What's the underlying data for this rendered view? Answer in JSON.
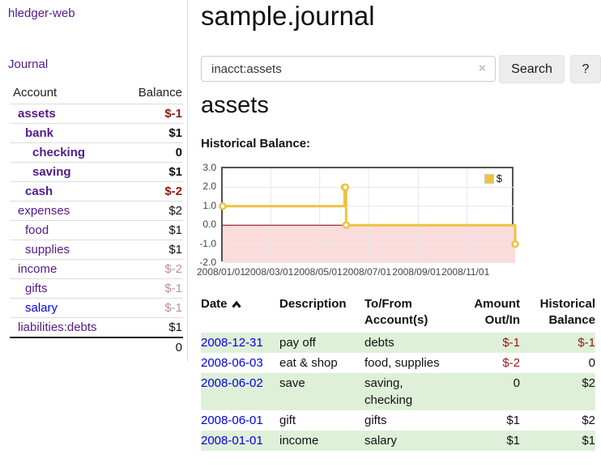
{
  "sidebar": {
    "brand": "hledger-web",
    "nav": [
      {
        "label": "Journal"
      }
    ],
    "accounts_table": {
      "headers": {
        "account": "Account",
        "balance": "Balance"
      },
      "rows": [
        {
          "name": "assets",
          "depth": 0,
          "balance": "$-1",
          "bold": true,
          "balance_style": "neg",
          "link_style": "purple"
        },
        {
          "name": "bank",
          "depth": 1,
          "balance": "$1",
          "bold": true,
          "balance_style": "normal",
          "link_style": "purple"
        },
        {
          "name": "checking",
          "depth": 2,
          "balance": "0",
          "bold": true,
          "balance_style": "normal",
          "link_style": "purple"
        },
        {
          "name": "saving",
          "depth": 2,
          "balance": "$1",
          "bold": true,
          "balance_style": "normal",
          "link_style": "purple"
        },
        {
          "name": "cash",
          "depth": 1,
          "balance": "$-2",
          "bold": true,
          "balance_style": "neg",
          "link_style": "purple"
        },
        {
          "name": "expenses",
          "depth": 0,
          "balance": "$2",
          "bold": false,
          "balance_style": "normal",
          "link_style": "purple"
        },
        {
          "name": "food",
          "depth": 1,
          "balance": "$1",
          "bold": false,
          "balance_style": "normal",
          "link_style": "purple"
        },
        {
          "name": "supplies",
          "depth": 1,
          "balance": "$1",
          "bold": false,
          "balance_style": "normal",
          "link_style": "purple"
        },
        {
          "name": "income",
          "depth": 0,
          "balance": "$-2",
          "bold": false,
          "balance_style": "neg-dim",
          "link_style": "purple"
        },
        {
          "name": "gifts",
          "depth": 1,
          "balance": "$-1",
          "bold": false,
          "balance_style": "neg-dim",
          "link_style": "purple"
        },
        {
          "name": "salary",
          "depth": 1,
          "balance": "$-1",
          "bold": false,
          "balance_style": "neg-dim",
          "link_style": "blue"
        },
        {
          "name": "liabilities:debts",
          "depth": 0,
          "balance": "$1",
          "bold": false,
          "balance_style": "normal",
          "link_style": "purple"
        }
      ],
      "total": "0"
    }
  },
  "main": {
    "title": "sample.journal",
    "search": {
      "value": "inacct:assets",
      "clear_icon": "×",
      "button": "Search",
      "help_button": "?"
    },
    "account_heading": "assets",
    "chart_label": "Historical Balance:",
    "register_table": {
      "headers": [
        "Date",
        "Description",
        "To/From Account(s)",
        "Amount Out/In",
        "Historical Balance"
      ],
      "sort": "ascending",
      "rows": [
        {
          "date": "2008-12-31",
          "description": "pay off",
          "accounts": "debts",
          "amount": "$-1",
          "amount_negative": true,
          "balance": "$-1",
          "balance_negative": true,
          "shaded": true
        },
        {
          "date": "2008-06-03",
          "description": "eat & shop",
          "accounts": "food, supplies",
          "amount": "$-2",
          "amount_negative": true,
          "balance": "0",
          "balance_negative": false,
          "shaded": false
        },
        {
          "date": "2008-06-02",
          "description": "save",
          "accounts": "saving, checking",
          "amount": "0",
          "amount_negative": false,
          "balance": "$2",
          "balance_negative": false,
          "shaded": true
        },
        {
          "date": "2008-06-01",
          "description": "gift",
          "accounts": "gifts",
          "amount": "$1",
          "amount_negative": false,
          "balance": "$2",
          "balance_negative": false,
          "shaded": false
        },
        {
          "date": "2008-01-01",
          "description": "income",
          "accounts": "salary",
          "amount": "$1",
          "amount_negative": false,
          "balance": "$1",
          "balance_negative": false,
          "shaded": true
        }
      ]
    }
  },
  "chart_data": {
    "type": "line",
    "title": "Historical Balance",
    "steps": true,
    "series": [
      {
        "name": "$",
        "color": "#edc240",
        "points": [
          {
            "date": "2008-01-01",
            "day": 0,
            "value": 1
          },
          {
            "date": "2008-06-01",
            "day": 152,
            "value": 2
          },
          {
            "date": "2008-06-02",
            "day": 153,
            "value": 2
          },
          {
            "date": "2008-06-03",
            "day": 154,
            "value": 0
          },
          {
            "date": "2008-12-31",
            "day": 365,
            "value": -1
          }
        ]
      }
    ],
    "xlim": [
      0,
      365
    ],
    "ylim": [
      -2,
      3
    ],
    "y_ticks": [
      {
        "v": 3,
        "label": "3.0"
      },
      {
        "v": 2,
        "label": "2.0"
      },
      {
        "v": 1,
        "label": "1.0"
      },
      {
        "v": 0,
        "label": "0.0"
      },
      {
        "v": -1,
        "label": "-1.0"
      },
      {
        "v": -2,
        "label": "-2.0"
      }
    ],
    "x_ticks": [
      {
        "day": 0,
        "label": "2008/01/01"
      },
      {
        "day": 60,
        "label": "2008/03/01"
      },
      {
        "day": 121,
        "label": "2008/05/01"
      },
      {
        "day": 182,
        "label": "2008/07/01"
      },
      {
        "day": 244,
        "label": "2008/09/01"
      },
      {
        "day": 305,
        "label": "2008/11/01"
      }
    ],
    "legend": {
      "label": "$",
      "position": "top-right"
    },
    "colors": {
      "line": "#edc240",
      "marker_fill": "#ffffff",
      "negative_region": "#fadcdc",
      "zero_line": "#8b0000",
      "grid": "#e7e7e7",
      "border": "#545454"
    }
  }
}
